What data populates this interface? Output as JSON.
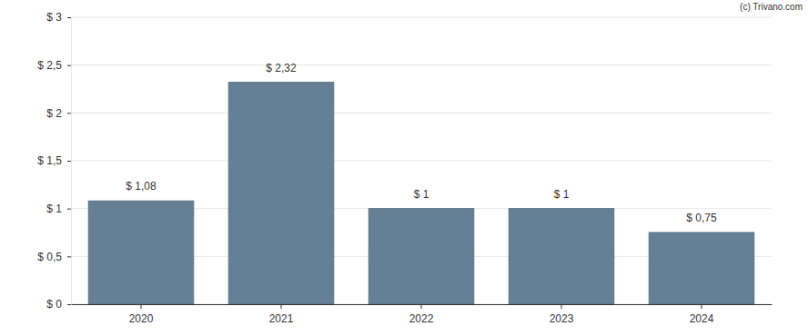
{
  "chart_data": {
    "type": "bar",
    "categories": [
      "2020",
      "2021",
      "2022",
      "2023",
      "2024"
    ],
    "values": [
      1.08,
      2.32,
      1,
      1,
      0.75
    ],
    "value_labels": [
      "$ 1,08",
      "$ 2,32",
      "$ 1",
      "$ 1",
      "$ 0,75"
    ],
    "data_labels": true,
    "color": "#657f94",
    "ylim": [
      0,
      3
    ],
    "yticks": [
      {
        "value": 0,
        "label": "$ 0"
      },
      {
        "value": 0.5,
        "label": "$ 0,5"
      },
      {
        "value": 1,
        "label": "$ 1"
      },
      {
        "value": 1.5,
        "label": "$ 1,5"
      },
      {
        "value": 2,
        "label": "$ 2"
      },
      {
        "value": 2.5,
        "label": "$ 2,5"
      },
      {
        "value": 3,
        "label": "$ 3"
      }
    ],
    "grid": true,
    "annotations": [
      "(c) Trivano.com"
    ]
  }
}
